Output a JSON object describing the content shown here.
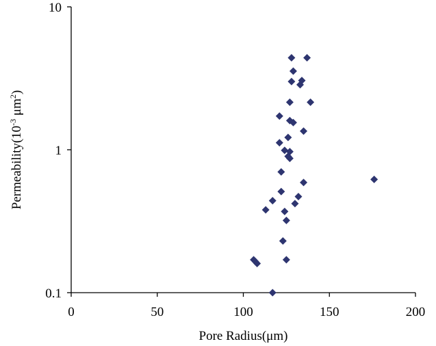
{
  "chart_data": {
    "type": "scatter",
    "xlabel": "Pore Radius(μm)",
    "ylabel": {
      "base": "Permeability(10",
      "sup1": "-3",
      "mid": " μm",
      "sup2": "2",
      "end": ")"
    },
    "x_axis": {
      "range": [
        0,
        200
      ],
      "ticks": [
        0,
        50,
        100,
        150,
        200
      ],
      "tick_labels": [
        "0",
        "50",
        "100",
        "150",
        "200"
      ]
    },
    "y_axis": {
      "scale": "log",
      "range": [
        0.1,
        10
      ],
      "ticks": [
        0.1,
        1,
        10
      ],
      "tick_labels": [
        "0.1",
        "1",
        "10"
      ]
    },
    "grid": false,
    "legend": false,
    "marker": "diamond",
    "point_color": "#2e3570",
    "points": [
      {
        "x": 128,
        "y": 4.4
      },
      {
        "x": 137,
        "y": 4.4
      },
      {
        "x": 129,
        "y": 3.55
      },
      {
        "x": 128,
        "y": 3.0
      },
      {
        "x": 134,
        "y": 3.05
      },
      {
        "x": 133,
        "y": 2.85
      },
      {
        "x": 127,
        "y": 2.15
      },
      {
        "x": 139,
        "y": 2.15
      },
      {
        "x": 121,
        "y": 1.72
      },
      {
        "x": 127,
        "y": 1.6
      },
      {
        "x": 129,
        "y": 1.55
      },
      {
        "x": 135,
        "y": 1.35
      },
      {
        "x": 126,
        "y": 1.22
      },
      {
        "x": 121,
        "y": 1.12
      },
      {
        "x": 124,
        "y": 0.99
      },
      {
        "x": 127,
        "y": 0.97
      },
      {
        "x": 126,
        "y": 0.9
      },
      {
        "x": 127,
        "y": 0.87
      },
      {
        "x": 122,
        "y": 0.7
      },
      {
        "x": 176,
        "y": 0.62
      },
      {
        "x": 135,
        "y": 0.59
      },
      {
        "x": 122,
        "y": 0.51
      },
      {
        "x": 132,
        "y": 0.47
      },
      {
        "x": 117,
        "y": 0.44
      },
      {
        "x": 130,
        "y": 0.42
      },
      {
        "x": 113,
        "y": 0.38
      },
      {
        "x": 124,
        "y": 0.37
      },
      {
        "x": 125,
        "y": 0.32
      },
      {
        "x": 123,
        "y": 0.23
      },
      {
        "x": 106,
        "y": 0.17
      },
      {
        "x": 107,
        "y": 0.165
      },
      {
        "x": 108,
        "y": 0.16
      },
      {
        "x": 125,
        "y": 0.17
      },
      {
        "x": 117,
        "y": 0.1
      }
    ]
  }
}
